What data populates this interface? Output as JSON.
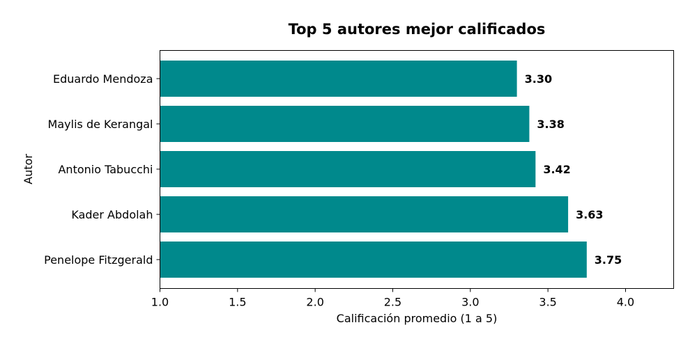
{
  "chart_data": {
    "type": "bar",
    "orientation": "horizontal",
    "title": "Top 5 autores mejor calificados",
    "xlabel": "Calificación promedio (1 a 5)",
    "ylabel": "Autor",
    "categories": [
      "Eduardo Mendoza",
      "Maylis de Kerangal",
      "Antonio Tabucchi",
      "Kader Abdolah",
      "Penelope Fitzgerald"
    ],
    "values": [
      3.3,
      3.38,
      3.42,
      3.63,
      3.75
    ],
    "data_labels": [
      "3.30",
      "3.38",
      "3.42",
      "3.63",
      "3.75"
    ],
    "xlim": [
      1.0,
      4.31
    ],
    "xticks": [
      1.0,
      1.5,
      2.0,
      2.5,
      3.0,
      3.5,
      4.0
    ],
    "xtick_labels": [
      "1.0",
      "1.5",
      "2.0",
      "2.5",
      "3.0",
      "3.5",
      "4.0"
    ],
    "bar_color": "#00898c",
    "grid": false
  }
}
